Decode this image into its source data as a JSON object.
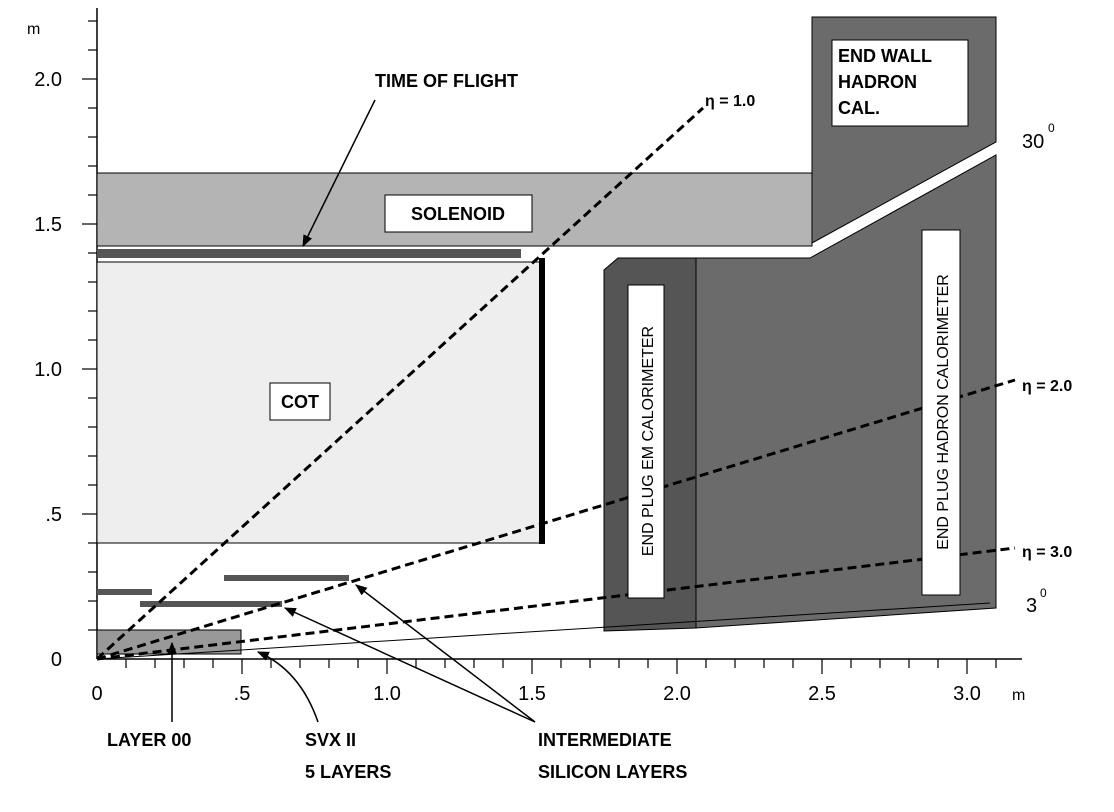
{
  "axes": {
    "y_unit": "m",
    "x_unit": "m",
    "y_tick_labels": [
      "0",
      ".5",
      "1.0",
      "1.5",
      "2.0"
    ],
    "x_tick_labels": [
      "0",
      ".5",
      "1.0",
      "1.5",
      "2.0",
      "2.5",
      "3.0"
    ]
  },
  "components": {
    "time_of_flight": "TIME  OF  FLIGHT",
    "solenoid": "SOLENOID",
    "cot": "COT",
    "end_wall": [
      "END WALL",
      "HADRON",
      "CAL."
    ],
    "end_plug_em": "END PLUG EM CALORIMETER",
    "end_plug_hadron": "END PLUG HADRON CALORIMETER"
  },
  "eta_lines": [
    "η =  1.0",
    "η =  2.0",
    "η =  3.0"
  ],
  "angles": [
    {
      "text": "30",
      "sup": "0"
    },
    {
      "text": "3",
      "sup": "0"
    }
  ],
  "bottom_labels": {
    "layer_00": "LAYER  00",
    "svx": [
      "SVX  II",
      "5 LAYERS"
    ],
    "intermediate": [
      "INTERMEDIATE",
      "SILICON  LAYERS"
    ]
  }
}
